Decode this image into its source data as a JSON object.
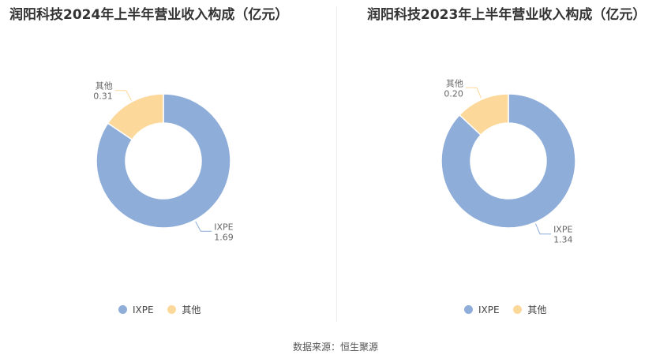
{
  "chart_data": [
    {
      "type": "pie",
      "title": "润阳科技2024年上半年营业收入构成（亿元）",
      "categories": [
        "IXPE",
        "其他"
      ],
      "values": [
        1.69,
        0.31
      ],
      "value_labels": [
        "1.69",
        "0.31"
      ],
      "legend": "bottom",
      "donut": true
    },
    {
      "type": "pie",
      "title": "润阳科技2023年上半年营业收入构成（亿元）",
      "categories": [
        "IXPE",
        "其他"
      ],
      "values": [
        1.34,
        0.2
      ],
      "value_labels": [
        "1.34",
        "0.20"
      ],
      "legend": "bottom",
      "donut": true
    }
  ],
  "colors": [
    "#8eadd9",
    "#fdd89b"
  ],
  "source": "数据来源：恒生聚源"
}
